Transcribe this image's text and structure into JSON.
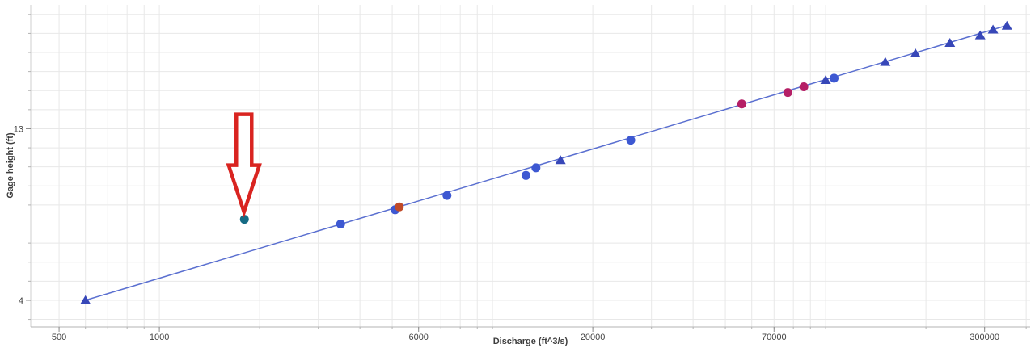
{
  "chart_data": {
    "type": "scatter",
    "title": "",
    "xlabel": "Discharge (ft^3/s)",
    "ylabel": "Gage height (ft)",
    "grid": true,
    "legend_position": "none",
    "x_axis": {
      "scale": "log",
      "range": [
        411,
        411000
      ],
      "tick_labels": [
        500,
        1000,
        6000,
        20000,
        70000,
        300000
      ],
      "minor_gridlines": "every 1-9 multiple per decade"
    },
    "y_axis": {
      "scale": "linear",
      "range": [
        2.6,
        19.5
      ],
      "tick_labels": [
        4,
        13
      ],
      "gridline_step": 1
    },
    "colors": {
      "line": "#5a6fd0",
      "triangle_marker": "#3747b8",
      "circle_marker": "#3d58d2",
      "magenta_marker": "#b51f66",
      "orange_marker": "#c04a28",
      "teal_marker": "#156b84",
      "arrow_stroke": "#d92420",
      "gridline": "#e8e8e8",
      "axis_line": "#b3b3b3",
      "tick_text": "#444444"
    },
    "series": [
      {
        "name": "rating-curve-line",
        "type": "line",
        "color": "#5a6fd0",
        "width": 1.5,
        "points": [
          [
            600,
            4.0
          ],
          [
            350000,
            18.42
          ]
        ]
      },
      {
        "name": "blue-triangle-points",
        "type": "scatter",
        "marker": "triangle",
        "color": "#3747b8",
        "points": [
          [
            600,
            4.0
          ],
          [
            16000,
            11.35
          ],
          [
            100000,
            15.55
          ],
          [
            151000,
            16.5
          ],
          [
            186000,
            16.95
          ],
          [
            236000,
            17.5
          ],
          [
            291000,
            17.9
          ],
          [
            318000,
            18.2
          ],
          [
            350000,
            18.4
          ]
        ]
      },
      {
        "name": "blue-circle-points",
        "type": "scatter",
        "marker": "circle",
        "color": "#3d58d2",
        "points": [
          [
            3500,
            8.0
          ],
          [
            5100,
            8.75
          ],
          [
            7300,
            9.5
          ],
          [
            12600,
            10.55
          ],
          [
            13500,
            10.95
          ],
          [
            26000,
            12.4
          ],
          [
            106000,
            15.65
          ]
        ]
      },
      {
        "name": "magenta-circle-points",
        "type": "scatter",
        "marker": "circle",
        "color": "#b51f66",
        "points": [
          [
            56000,
            14.3
          ],
          [
            77000,
            14.9
          ],
          [
            86000,
            15.2
          ]
        ]
      },
      {
        "name": "orange-circle-point",
        "type": "scatter",
        "marker": "circle",
        "color": "#c04a28",
        "points": [
          [
            5250,
            8.9
          ]
        ]
      },
      {
        "name": "teal-outlier-point",
        "type": "scatter",
        "marker": "circle",
        "color": "#156b84",
        "points": [
          [
            1800,
            8.25
          ]
        ]
      }
    ],
    "annotation": {
      "shape": "down-arrow",
      "stroke": "#d92420",
      "fill": "#ffffff",
      "target_point": [
        1800,
        8.25
      ]
    }
  }
}
